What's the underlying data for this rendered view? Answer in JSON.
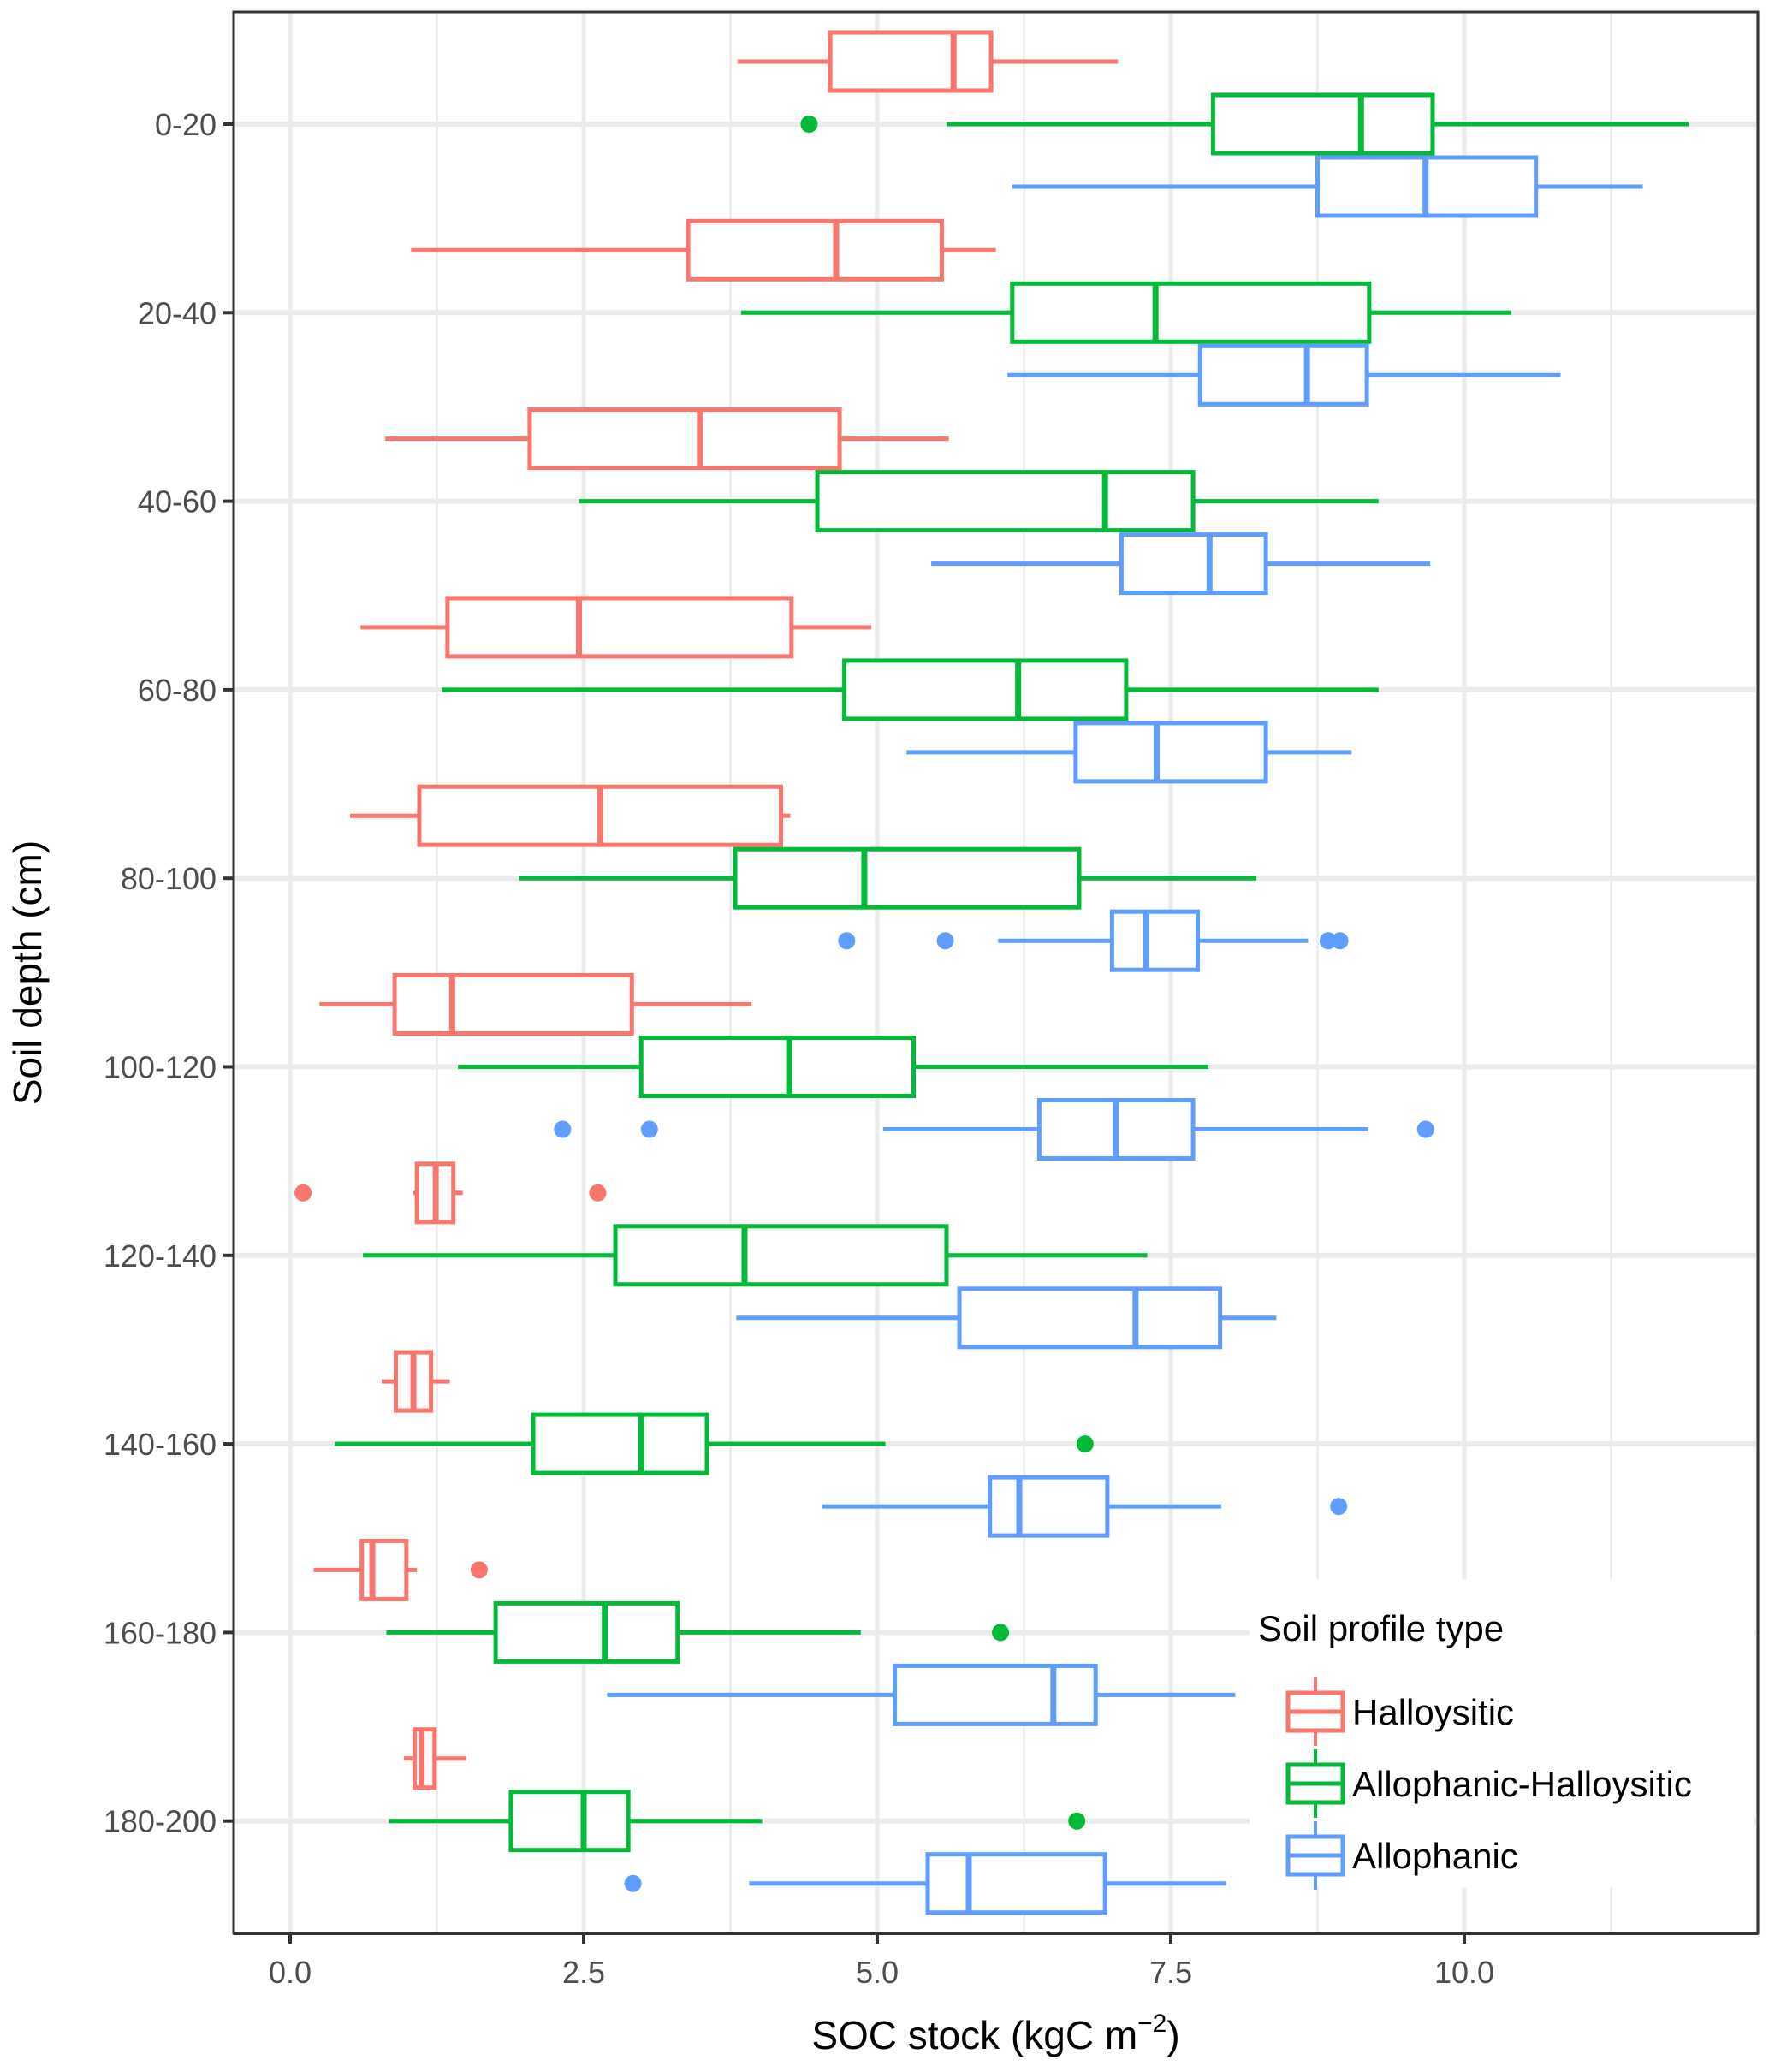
{
  "chart_data": {
    "type": "boxplot",
    "orientation": "horizontal",
    "title": "",
    "xlabel": "SOC stock (kgC m",
    "xlabel_superscript": "−2",
    "xlabel_close": ")",
    "ylabel": "Soil depth (cm)",
    "xlim": [
      -0.23,
      12.75
    ],
    "x_ticks": [
      0,
      2.5,
      5,
      7.5,
      10
    ],
    "x_tick_labels": [
      "0.0",
      "2.5",
      "5.0",
      "7.5",
      "10.0"
    ],
    "categories": [
      "0-20",
      "20-40",
      "40-60",
      "60-80",
      "80-100",
      "100-120",
      "120-140",
      "140-160",
      "160-180",
      "180-200"
    ],
    "grid": true,
    "legend": {
      "title": "Soil profile type",
      "position": "bottom-right-inside"
    },
    "series": [
      {
        "name": "Halloysitic",
        "color": "#F8766D",
        "boxes": [
          {
            "min": 3.81,
            "q1": 4.6,
            "median": 5.65,
            "q3": 5.97,
            "max": 7.05,
            "outliers": []
          },
          {
            "min": 1.03,
            "q1": 3.39,
            "median": 4.65,
            "q3": 5.55,
            "max": 6.01,
            "outliers": []
          },
          {
            "min": 0.81,
            "q1": 2.04,
            "median": 3.49,
            "q3": 4.68,
            "max": 5.61,
            "outliers": []
          },
          {
            "min": 0.6,
            "q1": 1.34,
            "median": 2.46,
            "q3": 4.27,
            "max": 4.95,
            "outliers": []
          },
          {
            "min": 0.51,
            "q1": 1.1,
            "median": 2.64,
            "q3": 4.18,
            "max": 4.26,
            "outliers": []
          },
          {
            "min": 0.25,
            "q1": 0.89,
            "median": 1.38,
            "q3": 2.91,
            "max": 3.93,
            "outliers": []
          },
          {
            "min": 1.05,
            "q1": 1.08,
            "median": 1.24,
            "q3": 1.39,
            "max": 1.47,
            "outliers": [
              0.11,
              2.62
            ]
          },
          {
            "min": 0.78,
            "q1": 0.9,
            "median": 1.05,
            "q3": 1.2,
            "max": 1.36,
            "outliers": []
          },
          {
            "min": 0.2,
            "q1": 0.61,
            "median": 0.7,
            "q3": 0.99,
            "max": 1.08,
            "outliers": [
              1.61
            ]
          },
          {
            "min": 0.97,
            "q1": 1.06,
            "median": 1.12,
            "q3": 1.23,
            "max": 1.5,
            "outliers": []
          }
        ]
      },
      {
        "name": "Allophanic-Halloysitic",
        "color": "#00BA38",
        "boxes": [
          {
            "min": 5.59,
            "q1": 7.86,
            "median": 9.12,
            "q3": 9.73,
            "max": 11.91,
            "outliers": [
              4.42
            ]
          },
          {
            "min": 3.84,
            "q1": 6.15,
            "median": 7.37,
            "q3": 9.19,
            "max": 10.4,
            "outliers": []
          },
          {
            "min": 2.46,
            "q1": 4.49,
            "median": 6.94,
            "q3": 7.69,
            "max": 9.27,
            "outliers": []
          },
          {
            "min": 1.29,
            "q1": 4.72,
            "median": 6.2,
            "q3": 7.12,
            "max": 9.27,
            "outliers": []
          },
          {
            "min": 1.95,
            "q1": 3.79,
            "median": 4.89,
            "q3": 6.72,
            "max": 8.23,
            "outliers": []
          },
          {
            "min": 1.43,
            "q1": 2.99,
            "median": 4.25,
            "q3": 5.31,
            "max": 7.82,
            "outliers": []
          },
          {
            "min": 0.62,
            "q1": 2.77,
            "median": 3.87,
            "q3": 5.59,
            "max": 7.3,
            "outliers": []
          },
          {
            "min": 0.38,
            "q1": 2.07,
            "median": 2.99,
            "q3": 3.55,
            "max": 5.07,
            "outliers": [
              6.77
            ]
          },
          {
            "min": 0.82,
            "q1": 1.75,
            "median": 2.68,
            "q3": 3.3,
            "max": 4.86,
            "outliers": [
              6.05
            ]
          },
          {
            "min": 0.84,
            "q1": 1.88,
            "median": 2.5,
            "q3": 2.88,
            "max": 4.02,
            "outliers": [
              6.7
            ]
          }
        ]
      },
      {
        "name": "Allophanic",
        "color": "#619CFF",
        "boxes": [
          {
            "min": 6.15,
            "q1": 8.75,
            "median": 9.67,
            "q3": 10.61,
            "max": 11.52,
            "outliers": []
          },
          {
            "min": 6.11,
            "q1": 7.75,
            "median": 8.66,
            "q3": 9.17,
            "max": 10.82,
            "outliers": []
          },
          {
            "min": 5.46,
            "q1": 7.08,
            "median": 7.83,
            "q3": 8.31,
            "max": 9.71,
            "outliers": []
          },
          {
            "min": 5.25,
            "q1": 6.69,
            "median": 7.38,
            "q3": 8.31,
            "max": 9.04,
            "outliers": []
          },
          {
            "min": 6.03,
            "q1": 7.0,
            "median": 7.29,
            "q3": 7.73,
            "max": 8.67,
            "outliers": [
              4.74,
              5.58,
              8.84,
              8.94
            ]
          },
          {
            "min": 5.05,
            "q1": 6.38,
            "median": 7.03,
            "q3": 7.69,
            "max": 9.18,
            "outliers": [
              2.32,
              3.06,
              9.67
            ]
          },
          {
            "min": 3.8,
            "q1": 5.7,
            "median": 7.2,
            "q3": 7.92,
            "max": 8.4,
            "outliers": []
          },
          {
            "min": 4.53,
            "q1": 5.96,
            "median": 6.21,
            "q3": 6.96,
            "max": 7.93,
            "outliers": [
              8.93
            ]
          },
          {
            "min": 2.7,
            "q1": 5.15,
            "median": 6.5,
            "q3": 6.86,
            "max": 8.05,
            "outliers": []
          },
          {
            "min": 3.91,
            "q1": 5.43,
            "median": 5.78,
            "q3": 6.94,
            "max": 7.97,
            "outliers": [
              2.92
            ]
          }
        ]
      }
    ]
  }
}
